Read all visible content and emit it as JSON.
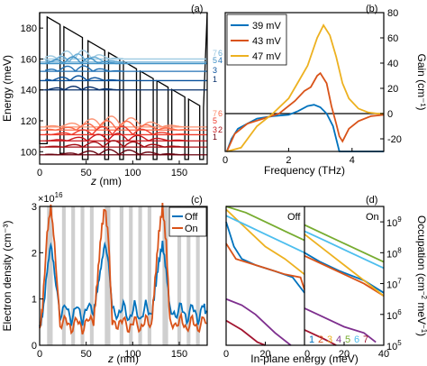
{
  "figure": {
    "panels": [
      "(a)",
      "(b)",
      "(c)",
      "(d)"
    ]
  },
  "colors": {
    "blue": "#0072bd",
    "orange": "#d95319",
    "yellow": "#edb120",
    "purple": "#7e2f8e",
    "green": "#77ac30",
    "cyan": "#4dbeee",
    "red": "#a2142f",
    "gray": "#cfcfcf"
  },
  "chart_data": [
    {
      "panel": "(a)",
      "type": "line",
      "xlabel_prefix": "",
      "xlabel_var": "z",
      "xlabel_unit": " (nm)",
      "ylabel": "Energy (meV)",
      "xlim": [
        0,
        180
      ],
      "ylim": [
        92,
        190
      ],
      "xticks": [
        "0",
        "50",
        "100",
        "150"
      ],
      "yticks": [
        "100",
        "120",
        "140",
        "160",
        "180"
      ],
      "level_labels_upper": [
        "7",
        "6",
        "5",
        "4",
        "3",
        "1"
      ],
      "level_labels_lower": [
        "7",
        "6",
        "5",
        "3",
        "2",
        "1"
      ],
      "upper_levels_meV": [
        160,
        158,
        157,
        152,
        146,
        140
      ],
      "lower_levels_meV": [
        116,
        114,
        111,
        107,
        103,
        98
      ]
    },
    {
      "panel": "(b)",
      "type": "line",
      "xlabel": "Frequency (THz)",
      "ylabel": "Gain (cm⁻¹)",
      "xlim": [
        0,
        5
      ],
      "ylim": [
        -30,
        80
      ],
      "xticks": [
        "0",
        "2",
        "4"
      ],
      "yticks": [
        "80",
        "60",
        "40",
        "20",
        "0",
        "-20"
      ],
      "legend": [
        "39 mV",
        "43 mV",
        "47 mV"
      ],
      "series": [
        {
          "name": "39 mV",
          "x": [
            0.05,
            0.2,
            0.4,
            0.7,
            1.0,
            1.5,
            2.0,
            2.3,
            2.6,
            2.8,
            3.0,
            3.2,
            3.4,
            3.5,
            3.6,
            3.8,
            4.2,
            5.0
          ],
          "y": [
            -30,
            -20,
            -12,
            -8,
            -4,
            -2,
            -1,
            2,
            6,
            7,
            5,
            0,
            -10,
            -20,
            -30,
            -30,
            -30,
            -30
          ]
        },
        {
          "name": "43 mV",
          "x": [
            0.05,
            0.3,
            0.7,
            1.2,
            1.7,
            2.2,
            2.5,
            2.7,
            2.9,
            3.0,
            3.2,
            3.35,
            3.5,
            3.6,
            3.7,
            3.9,
            4.2,
            4.6,
            5.0
          ],
          "y": [
            -30,
            -16,
            -8,
            -4,
            0,
            10,
            18,
            21,
            30,
            32,
            24,
            6,
            -8,
            -18,
            -22,
            -12,
            -6,
            -2,
            -1
          ]
        },
        {
          "name": "47 mV",
          "x": [
            0.05,
            0.5,
            1.0,
            1.5,
            2.0,
            2.3,
            2.6,
            2.9,
            3.1,
            3.3,
            3.5,
            3.7,
            3.9,
            4.2,
            4.5,
            4.8,
            5.0
          ],
          "y": [
            -30,
            -27,
            -10,
            0,
            12,
            25,
            38,
            60,
            70,
            62,
            45,
            24,
            12,
            4,
            1,
            0,
            0
          ]
        }
      ]
    },
    {
      "panel": "(c)",
      "type": "line",
      "exponent_base": "×10",
      "exponent_power": "16",
      "xlabel_var": "z",
      "xlabel_unit": " (nm)",
      "ylabel": "Electron density (cm⁻³)",
      "xlim": [
        0,
        180
      ],
      "ylim": [
        0,
        3
      ],
      "xticks": [
        "0",
        "50",
        "100",
        "150"
      ],
      "yticks": [
        "0",
        "1",
        "2",
        "3"
      ],
      "legend": [
        "Off",
        "On"
      ],
      "period_nm": 62,
      "series": [
        {
          "name": "Off",
          "x": [
            0,
            3,
            8,
            12,
            16,
            22,
            28,
            34,
            40,
            46,
            52,
            58,
            62,
            66,
            70,
            74,
            78,
            84,
            90,
            96,
            102,
            108,
            114,
            120,
            124,
            128,
            132,
            136,
            140,
            146,
            152,
            158,
            164,
            170,
            176,
            180
          ],
          "y": [
            0.4,
            0.6,
            1.6,
            2.2,
            1.6,
            0.6,
            0.9,
            0.5,
            0.9,
            0.5,
            0.9,
            0.7,
            1.2,
            1.7,
            2.2,
            1.8,
            0.8,
            0.6,
            0.9,
            0.5,
            0.9,
            0.5,
            0.9,
            0.6,
            1.2,
            1.8,
            2.2,
            1.6,
            0.8,
            0.6,
            0.9,
            0.5,
            0.9,
            0.5,
            0.9,
            0.6
          ]
        },
        {
          "name": "On",
          "x": [
            0,
            3,
            8,
            12,
            16,
            22,
            28,
            34,
            40,
            46,
            52,
            58,
            62,
            66,
            70,
            74,
            78,
            84,
            90,
            96,
            102,
            108,
            114,
            120,
            124,
            128,
            132,
            136,
            140,
            146,
            152,
            158,
            164,
            170,
            176,
            180
          ],
          "y": [
            0.3,
            0.8,
            2.4,
            3.0,
            2.2,
            0.4,
            0.6,
            0.3,
            0.6,
            0.3,
            0.6,
            0.5,
            1.4,
            2.4,
            3.0,
            2.3,
            0.5,
            0.4,
            0.6,
            0.3,
            0.6,
            0.3,
            0.6,
            0.4,
            1.4,
            2.4,
            3.0,
            2.2,
            0.5,
            0.4,
            0.6,
            0.3,
            0.6,
            0.3,
            0.6,
            0.4
          ]
        }
      ]
    },
    {
      "panel": "(d)",
      "type": "line",
      "xlabel": "In-plane energy (meV)",
      "ylabel_base": "Occupation (cm",
      "ylabel_sup": "−2",
      "ylabel_mid": " meV",
      "ylabel_sup2": "−1",
      "ylabel_end": ")",
      "subpanels": [
        "Off",
        "On"
      ],
      "xlim_each": [
        0,
        40
      ],
      "xticks": [
        "0",
        "20",
        "0",
        "20",
        "40"
      ],
      "yscale": "log",
      "ylim_exp": [
        5,
        9.5
      ],
      "ytick_exps": [
        "5",
        "6",
        "7",
        "8",
        "9"
      ],
      "level_legend": [
        "1",
        "2",
        "3",
        "4",
        "5",
        "6",
        "7"
      ],
      "series": [
        {
          "name": "1",
          "color": "blue",
          "off": [
            [
              0,
              9.0
            ],
            [
              4,
              8.2
            ],
            [
              8,
              7.8
            ],
            [
              15,
              7.6
            ],
            [
              25,
              7.4
            ],
            [
              34,
              7.2
            ],
            [
              40,
              6.7
            ]
          ],
          "on": [
            [
              0,
              8.0
            ],
            [
              8,
              7.7
            ],
            [
              18,
              7.4
            ],
            [
              30,
              7.1
            ],
            [
              40,
              6.7
            ]
          ]
        },
        {
          "name": "2",
          "color": "orange",
          "off": [
            [
              0,
              8.3
            ],
            [
              5,
              7.8
            ],
            [
              10,
              7.7
            ],
            [
              20,
              7.5
            ],
            [
              30,
              7.3
            ],
            [
              38,
              7.2
            ],
            [
              40,
              6.8
            ]
          ],
          "on": [
            [
              0,
              7.9
            ],
            [
              10,
              7.6
            ],
            [
              20,
              7.3
            ],
            [
              30,
              7.0
            ],
            [
              40,
              6.6
            ]
          ]
        },
        {
          "name": "3",
          "color": "yellow",
          "off": [
            [
              0,
              9.4
            ],
            [
              10,
              8.8
            ],
            [
              20,
              8.2
            ],
            [
              30,
              7.8
            ],
            [
              40,
              7.3
            ]
          ],
          "on": [
            [
              0,
              8.6
            ],
            [
              10,
              8.1
            ],
            [
              20,
              7.6
            ],
            [
              30,
              7.1
            ],
            [
              40,
              6.6
            ]
          ]
        },
        {
          "name": "4",
          "color": "purple",
          "off": [
            [
              0,
              6.5
            ],
            [
              8,
              6.3
            ],
            [
              15,
              6.0
            ],
            [
              25,
              5.4
            ],
            [
              33,
              5.0
            ]
          ],
          "on": [
            [
              0,
              6.2
            ],
            [
              10,
              5.9
            ],
            [
              20,
              5.6
            ],
            [
              30,
              5.4
            ],
            [
              36,
              5.1
            ]
          ]
        },
        {
          "name": "5",
          "color": "green",
          "off": [
            [
              0,
              9.5
            ],
            [
              10,
              9.3
            ],
            [
              20,
              9.0
            ],
            [
              30,
              8.7
            ],
            [
              40,
              8.4
            ]
          ],
          "on": [
            [
              0,
              8.9
            ],
            [
              10,
              8.6
            ],
            [
              20,
              8.3
            ],
            [
              30,
              8.0
            ],
            [
              40,
              7.7
            ]
          ]
        },
        {
          "name": "6",
          "color": "cyan",
          "off": [
            [
              0,
              9.2
            ],
            [
              10,
              8.9
            ],
            [
              20,
              8.6
            ],
            [
              30,
              8.3
            ],
            [
              40,
              8.0
            ]
          ],
          "on": [
            [
              0,
              8.7
            ],
            [
              10,
              8.4
            ],
            [
              20,
              8.1
            ],
            [
              30,
              7.8
            ],
            [
              40,
              7.5
            ]
          ]
        },
        {
          "name": "7",
          "color": "red",
          "off": [
            [
              0,
              5.8
            ],
            [
              8,
              5.5
            ],
            [
              16,
              5.1
            ],
            [
              20,
              4.9
            ]
          ],
          "on": [
            [
              0,
              5.5
            ],
            [
              10,
              5.2
            ],
            [
              16,
              5.0
            ]
          ]
        }
      ]
    }
  ]
}
